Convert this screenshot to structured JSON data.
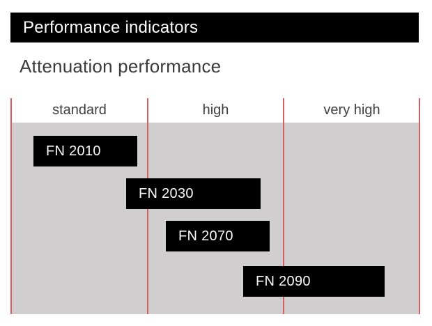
{
  "header": {
    "title": "Performance indicators",
    "bar_color": "#000000",
    "text_color": "#ffffff"
  },
  "section": {
    "title": "Attenuation performance",
    "text_color": "#3a3a3a"
  },
  "chart": {
    "columns": [
      "standard",
      "high",
      "very high"
    ],
    "bars": [
      {
        "label": "FN 2010"
      },
      {
        "label": "FN 2030"
      },
      {
        "label": "FN 2070"
      },
      {
        "label": "FN 2090"
      }
    ],
    "colors": {
      "panel_background": "#d0cece",
      "separator_line": "#d65d60",
      "bar_fill": "#000000",
      "bar_text": "#fafafa",
      "column_label_text": "#404040"
    }
  },
  "chart_data": {
    "type": "bar",
    "subtype": "horizontal-range-bands",
    "title": "Attenuation performance",
    "categories": [
      "standard",
      "high",
      "very high"
    ],
    "x_units": "category span: 0 = left edge of 'standard', each category = 1 unit, axis range 0 to 3",
    "series": [
      {
        "name": "FN 2010",
        "range": [
          0.16,
          0.92
        ],
        "covers": [
          "standard"
        ]
      },
      {
        "name": "FN 2030",
        "range": [
          0.84,
          1.83
        ],
        "covers": [
          "standard",
          "high"
        ]
      },
      {
        "name": "FN 2070",
        "range": [
          1.13,
          1.9
        ],
        "covers": [
          "high"
        ]
      },
      {
        "name": "FN 2090",
        "range": [
          1.7,
          2.74
        ],
        "covers": [
          "high",
          "very high"
        ]
      }
    ],
    "legend": false,
    "grid": "vertical red separators at category boundaries",
    "ylabel": "",
    "xlabel": ""
  }
}
